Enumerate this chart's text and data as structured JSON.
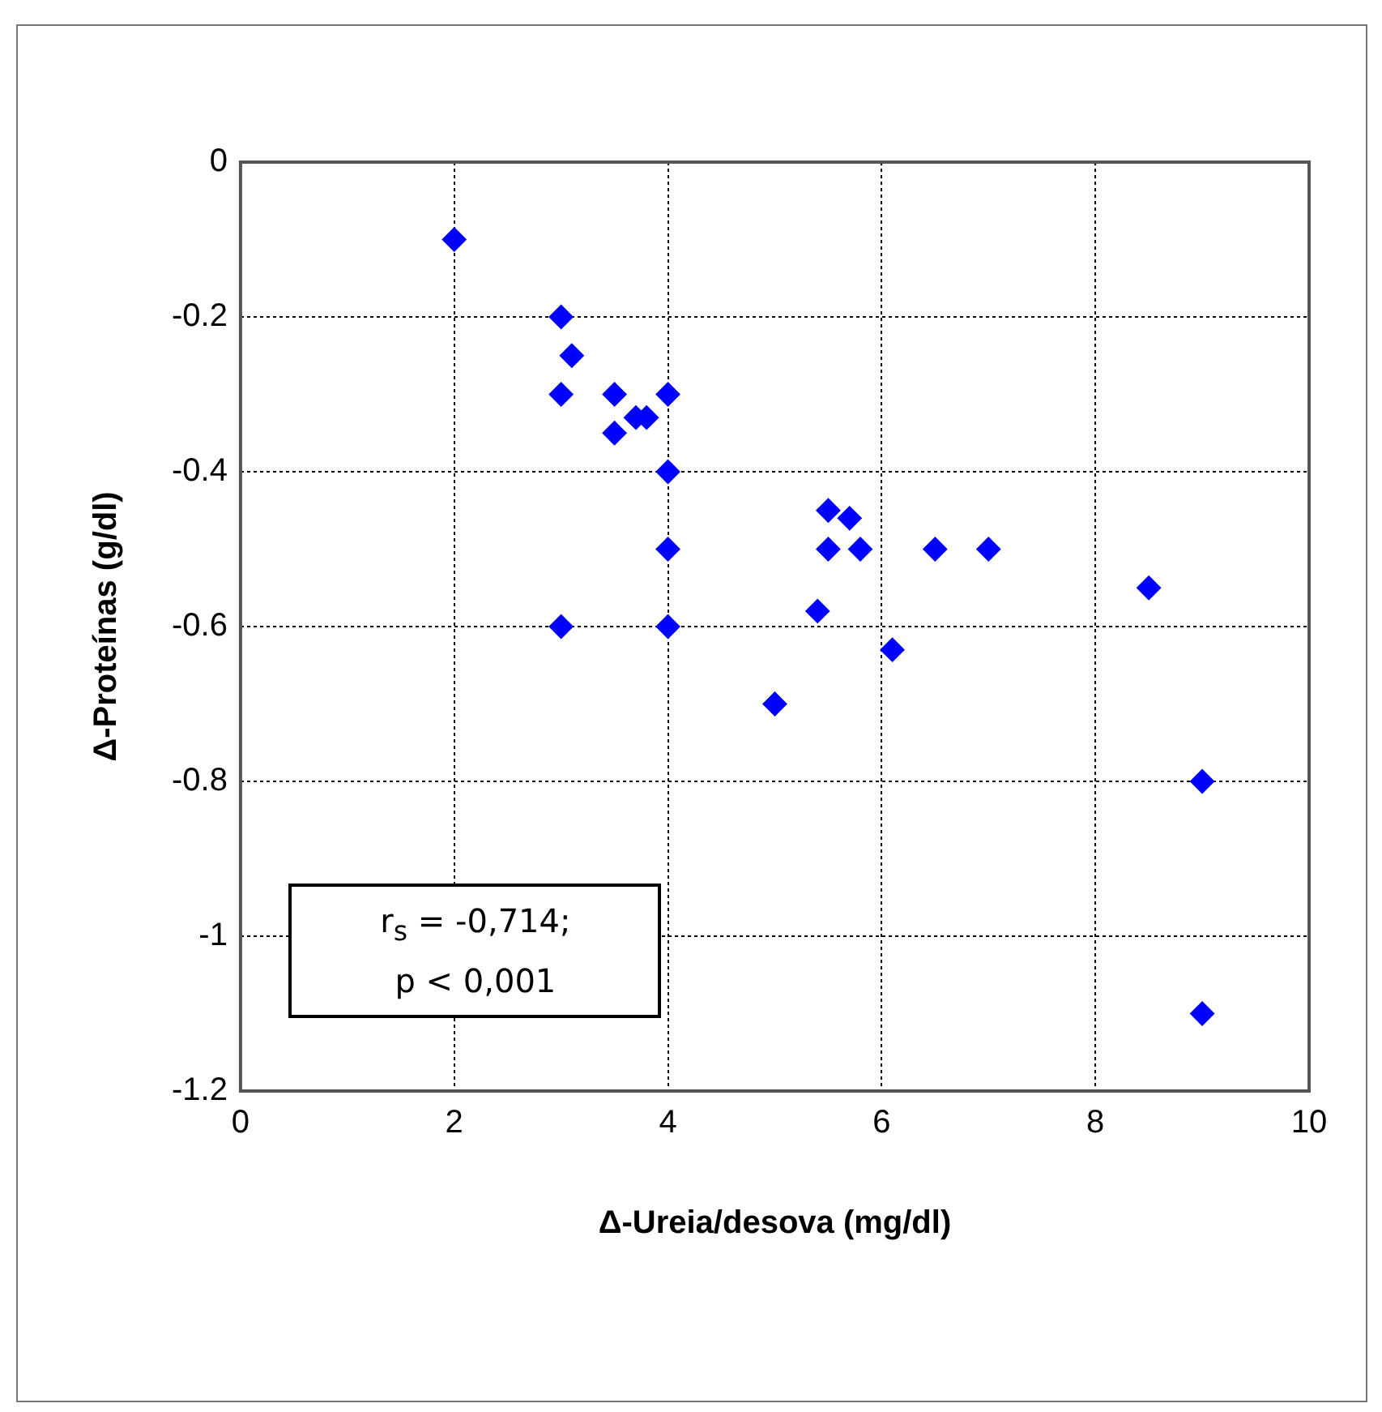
{
  "chart_data": {
    "type": "scatter",
    "xlabel": "Δ-Ureia/desova (mg/dl)",
    "ylabel": "Δ-Proteínas (g/dl)",
    "x": [
      2,
      3,
      3.1,
      3,
      3.5,
      3.5,
      3.7,
      3.8,
      4,
      4,
      4,
      4,
      3,
      5,
      5.4,
      5.5,
      5.5,
      5.7,
      5.8,
      6.1,
      6.5,
      7,
      8.5,
      9,
      9
    ],
    "series": [
      {
        "color": "#0000ff",
        "values": [
          -0.1,
          -0.2,
          -0.25,
          -0.3,
          -0.3,
          -0.35,
          -0.33,
          -0.33,
          -0.3,
          -0.4,
          -0.5,
          -0.6,
          -0.6,
          -0.7,
          -0.58,
          -0.45,
          -0.5,
          -0.46,
          -0.5,
          -0.63,
          -0.5,
          -0.5,
          -0.55,
          -0.8,
          -1.1
        ]
      }
    ],
    "xlim": [
      0,
      10
    ],
    "xticks": [
      0,
      2,
      4,
      6,
      8,
      10
    ],
    "ylim": [
      -1.2,
      0
    ],
    "yticks": [
      -1.2,
      -1,
      -0.8,
      -0.6,
      -0.4,
      -0.2,
      0
    ],
    "grid": true,
    "marker": "diamond",
    "annotations": [
      "r$_{s}$ = -0,714;\np < 0,001"
    ]
  }
}
